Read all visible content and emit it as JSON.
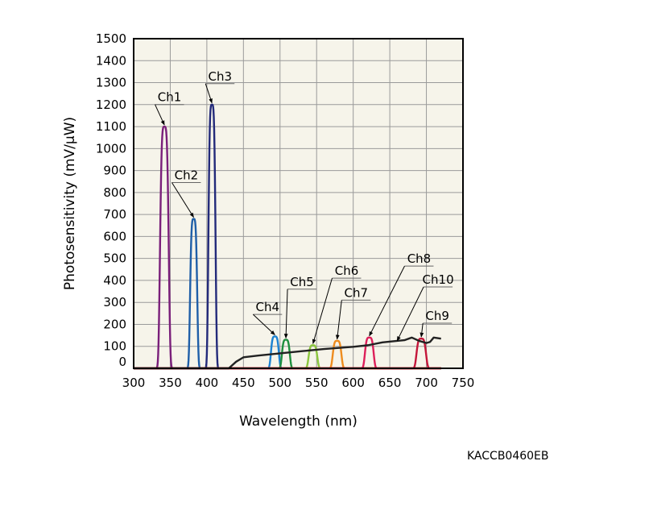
{
  "chart_data": {
    "type": "line",
    "xlabel": "Wavelength (nm)",
    "ylabel": "Photosensitivity (mV/μW)",
    "xlim": [
      300,
      750
    ],
    "ylim": [
      0,
      1500
    ],
    "x_ticks": [
      300,
      350,
      400,
      450,
      500,
      550,
      600,
      650,
      700,
      750
    ],
    "y_ticks": [
      0,
      100,
      200,
      300,
      400,
      500,
      600,
      700,
      800,
      900,
      1000,
      1100,
      1200,
      1300,
      1400,
      1500
    ],
    "grid": true,
    "background_color": "#f6f4ea",
    "series": [
      {
        "name": "Ch1",
        "color": "#7a1f7a",
        "peak_x": 342,
        "peak_y": 1100,
        "width": 5.5,
        "label_x": 349,
        "label_y": 1215
      },
      {
        "name": "Ch2",
        "color": "#1f5fa8",
        "peak_x": 382,
        "peak_y": 680,
        "width": 4.5,
        "label_x": 372,
        "label_y": 860
      },
      {
        "name": "Ch3",
        "color": "#232a7a",
        "peak_x": 407,
        "peak_y": 1200,
        "width": 4.5,
        "label_x": 418,
        "label_y": 1310
      },
      {
        "name": "Ch4",
        "color": "#1c82d2",
        "peak_x": 493,
        "peak_y": 145,
        "width": 5,
        "label_x": 483,
        "label_y": 260
      },
      {
        "name": "Ch5",
        "color": "#1f8f3e",
        "peak_x": 508,
        "peak_y": 130,
        "width": 5,
        "label_x": 530,
        "label_y": 375
      },
      {
        "name": "Ch6",
        "color": "#8cc63e",
        "peak_x": 545,
        "peak_y": 105,
        "width": 5.5,
        "label_x": 591,
        "label_y": 425
      },
      {
        "name": "Ch7",
        "color": "#ee8c1e",
        "peak_x": 578,
        "peak_y": 125,
        "width": 5.5,
        "label_x": 604,
        "label_y": 325
      },
      {
        "name": "Ch8",
        "color": "#dd1f5a",
        "peak_x": 622,
        "peak_y": 140,
        "width": 5.5,
        "label_x": 690,
        "label_y": 480
      },
      {
        "name": "Ch9",
        "color": "#c4163a",
        "peak_x": 693,
        "peak_y": 135,
        "width": 6,
        "label_x": 715,
        "label_y": 220
      },
      {
        "name": "Ch10",
        "color": "#222222",
        "type": "curve",
        "x": [
          300,
          430,
          440,
          450,
          470,
          500,
          530,
          560,
          600,
          620,
          640,
          660,
          670,
          680,
          690,
          700,
          705,
          710,
          720
        ],
        "y": [
          0,
          0,
          30,
          50,
          58,
          68,
          78,
          88,
          98,
          105,
          118,
          125,
          128,
          140,
          125,
          115,
          120,
          140,
          135
        ],
        "label_x": 716,
        "label_y": 385
      }
    ]
  },
  "figure_code": "KACCB0460EB"
}
